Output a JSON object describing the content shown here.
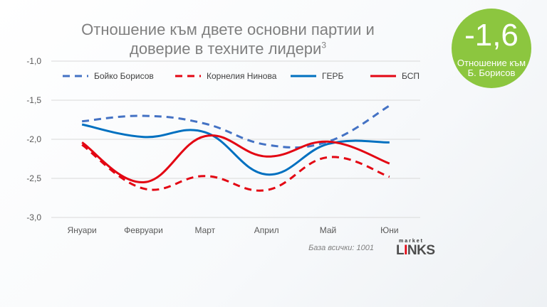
{
  "title": {
    "line1": "Отношение към двете основни партии и",
    "line2": "доверие в техните лидери",
    "superscript": "3"
  },
  "badge": {
    "value": "-1,6",
    "label_line1": "Отношение към",
    "label_line2": "Б. Борисов",
    "color": "#8cc63f"
  },
  "base_note": "База всички: 1001",
  "logo": {
    "small": "market",
    "big_prefix": "L",
    "big_red": "I",
    "big_suffix": "NKS"
  },
  "chart_data": {
    "type": "line",
    "title": "Отношение към двете основни партии и доверие в техните лидери",
    "xlabel": "",
    "ylabel": "",
    "ylim": [
      -3.0,
      -1.0
    ],
    "y_ticks": [
      -1.0,
      -1.5,
      -2.0,
      -2.5,
      -3.0
    ],
    "y_tick_labels": [
      "-1,0",
      "-1,5",
      "-2,0",
      "-2,5",
      "-3,0"
    ],
    "grid": true,
    "legend_position": "top",
    "categories": [
      "Януари",
      "Февруари",
      "Март",
      "Април",
      "Май",
      "Юни"
    ],
    "series": [
      {
        "name": "Бойко Борисов",
        "color": "#4472c4",
        "dash": true,
        "values": [
          -1.77,
          -1.7,
          -1.8,
          -2.07,
          -2.03,
          -1.57
        ]
      },
      {
        "name": "Корнелия Нинова",
        "color": "#e30613",
        "dash": true,
        "values": [
          -2.07,
          -2.63,
          -2.47,
          -2.65,
          -2.23,
          -2.48
        ]
      },
      {
        "name": "ГЕРБ",
        "color": "#0070c0",
        "dash": false,
        "values": [
          -1.81,
          -1.97,
          -1.91,
          -2.45,
          -2.06,
          -2.04
        ]
      },
      {
        "name": "БСП",
        "color": "#e30613",
        "dash": false,
        "values": [
          -2.04,
          -2.55,
          -1.96,
          -2.22,
          -2.03,
          -2.31
        ]
      }
    ]
  }
}
